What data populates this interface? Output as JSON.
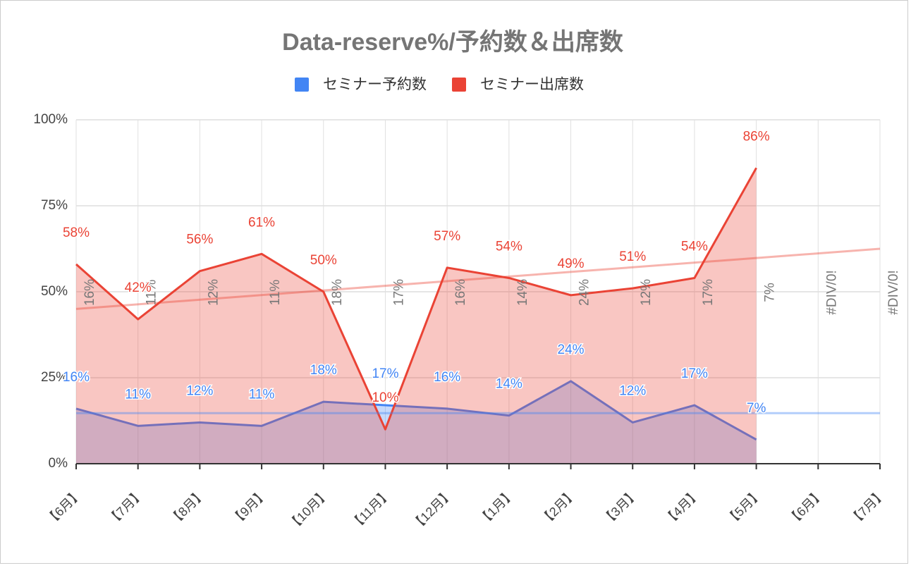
{
  "chart_data": {
    "type": "area",
    "title": "Data-reserve%/予約数＆出席数",
    "categories": [
      "【6月】",
      "【7月】",
      "【8月】",
      "【9月】",
      "【10月】",
      "【11月】",
      "【12月】",
      "【1月】",
      "【2月】",
      "【3月】",
      "【4月】",
      "【5月】",
      "【6月】",
      "【7月】"
    ],
    "series": [
      {
        "name": "セミナー予約数",
        "color": "#4285f4",
        "values": [
          16,
          11,
          12,
          11,
          18,
          17,
          16,
          14,
          24,
          12,
          17,
          7,
          null,
          null
        ],
        "value_labels": [
          "16%",
          "11%",
          "12%",
          "11%",
          "18%",
          "17%",
          "16%",
          "14%",
          "24%",
          "12%",
          "17%",
          "7%",
          null,
          null
        ],
        "trendline": [
          14.7,
          14.7
        ]
      },
      {
        "name": "セミナー出席数",
        "color": "#ea4335",
        "values": [
          58,
          42,
          56,
          61,
          50,
          10,
          57,
          54,
          49,
          51,
          54,
          86,
          null,
          null
        ],
        "value_labels": [
          "58%",
          "42%",
          "56%",
          "61%",
          "50%",
          "10%",
          "57%",
          "54%",
          "49%",
          "51%",
          "54%",
          "86%",
          null,
          null
        ],
        "trendline": [
          45,
          62.5
        ]
      }
    ],
    "annotations": [
      "16%",
      "11%",
      "12%",
      "11%",
      "18%",
      "17%",
      "16%",
      "14%",
      "24%",
      "12%",
      "17%",
      "7%",
      "#DIV/0!",
      "#DIV/0!"
    ],
    "ylim": [
      0,
      100
    ],
    "yticks": [
      {
        "value": 0,
        "label": "0%"
      },
      {
        "value": 25,
        "label": "25%"
      },
      {
        "value": 50,
        "label": "50%"
      },
      {
        "value": 75,
        "label": "75%"
      },
      {
        "value": 100,
        "label": "100%"
      }
    ],
    "grid": true,
    "legend": "top"
  }
}
